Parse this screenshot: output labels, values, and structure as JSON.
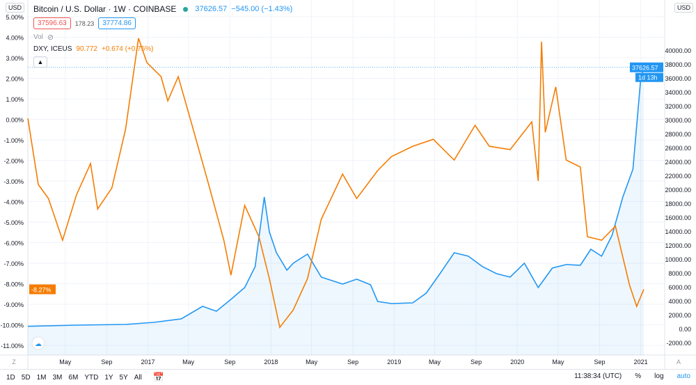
{
  "header": {
    "symbol_title": "Bitcoin / U.S. Dollar · 1W · COINBASE",
    "last": "37626.57",
    "change": "−545.00 (−1.43%)",
    "bid": "37596.63",
    "spread": "178.23",
    "ask": "37774.86",
    "vol_label": "Vol",
    "compare_label": "DXY, ICEUS",
    "compare_value": "90.772",
    "compare_change": "+0.674 (+0.75%)",
    "currency_left": "USD",
    "currency_right": "USD"
  },
  "price_label": "37626.57",
  "countdown": "1d 13h",
  "dxy_label": "-8.27%",
  "toolbar": {
    "ranges": [
      "1D",
      "5D",
      "1M",
      "3M",
      "6M",
      "YTD",
      "1Y",
      "5Y",
      "All"
    ],
    "time": "11:38:34 (UTC)",
    "percent": "%",
    "log": "log",
    "auto": "auto"
  },
  "colors": {
    "btc": "#2196f3",
    "dxy": "#f57c00",
    "grid": "#f0f3fa"
  },
  "chart_data": {
    "type": "line",
    "x_ticks": [
      "May",
      "Sep",
      "2017",
      "May",
      "Sep",
      "2018",
      "May",
      "Sep",
      "2019",
      "May",
      "Sep",
      "2020",
      "May",
      "Sep",
      "2021"
    ],
    "x_tick_dates": [
      "2016-05-01",
      "2016-09-01",
      "2017-01-01",
      "2017-05-01",
      "2017-09-01",
      "2018-01-01",
      "2018-05-01",
      "2018-09-01",
      "2019-01-01",
      "2019-05-01",
      "2019-09-01",
      "2020-01-01",
      "2020-05-01",
      "2020-09-01",
      "2021-01-01"
    ],
    "x_range": [
      "2016-01-11",
      "2021-03-13"
    ],
    "left_axis": {
      "ticks": [
        "5.00%",
        "4.00%",
        "3.00%",
        "2.00%",
        "1.00%",
        "0.00%",
        "-1.00%",
        "-2.00%",
        "-3.00%",
        "-4.00%",
        "-5.00%",
        "-6.00%",
        "-7.00%",
        "-8.00%",
        "-9.00%",
        "-10.00%",
        "-11.00%"
      ],
      "range": [
        -11.47,
        5.81
      ]
    },
    "right_axis": {
      "ticks": [
        "40000.00",
        "38000.00",
        "36000.00",
        "34000.00",
        "32000.00",
        "30000.00",
        "28000.00",
        "26000.00",
        "24000.00",
        "22000.00",
        "20000.00",
        "18000.00",
        "16000.00",
        "14000.00",
        "12000.00",
        "10000.00",
        "8000.00",
        "6000.00",
        "4000.00",
        "2000.00",
        "0.00",
        "-2000.00"
      ],
      "range": [
        -3700,
        47300
      ]
    },
    "grid": true,
    "series": [
      {
        "name": "Bitcoin / U.S. Dollar",
        "axis": "right",
        "style": "area",
        "points": [
          [
            "2016-01-11",
            430
          ],
          [
            "2016-06-03",
            600
          ],
          [
            "2016-10-27",
            700
          ],
          [
            "2017-01-19",
            1000
          ],
          [
            "2017-04-10",
            1500
          ],
          [
            "2017-06-12",
            3300
          ],
          [
            "2017-07-23",
            2600
          ],
          [
            "2017-09-04",
            4300
          ],
          [
            "2017-10-15",
            6000
          ],
          [
            "2017-11-15",
            9000
          ],
          [
            "2017-12-12",
            19000
          ],
          [
            "2017-12-27",
            14000
          ],
          [
            "2018-01-17",
            11000
          ],
          [
            "2018-02-17",
            8500
          ],
          [
            "2018-03-08",
            9500
          ],
          [
            "2018-04-19",
            10800
          ],
          [
            "2018-05-30",
            7500
          ],
          [
            "2018-08-01",
            6500
          ],
          [
            "2018-09-12",
            7200
          ],
          [
            "2018-10-23",
            6400
          ],
          [
            "2018-11-13",
            4000
          ],
          [
            "2018-12-24",
            3700
          ],
          [
            "2019-02-25",
            3800
          ],
          [
            "2019-04-06",
            5200
          ],
          [
            "2019-05-17",
            8000
          ],
          [
            "2019-06-28",
            11000
          ],
          [
            "2019-08-09",
            10500
          ],
          [
            "2019-09-20",
            9000
          ],
          [
            "2019-10-31",
            8000
          ],
          [
            "2019-12-11",
            7500
          ],
          [
            "2020-01-22",
            9500
          ],
          [
            "2020-03-03",
            6000
          ],
          [
            "2020-04-14",
            8800
          ],
          [
            "2020-05-25",
            9300
          ],
          [
            "2020-07-06",
            9200
          ],
          [
            "2020-08-06",
            11500
          ],
          [
            "2020-09-07",
            10500
          ],
          [
            "2020-10-08",
            13500
          ],
          [
            "2020-11-09",
            19000
          ],
          [
            "2020-12-09",
            23000
          ],
          [
            "2021-01-01",
            36000
          ],
          [
            "2021-01-10",
            37626.57
          ]
        ]
      },
      {
        "name": "DXY, ICEUS",
        "axis": "left",
        "style": "line",
        "points": [
          [
            "2016-01-11",
            0.05
          ],
          [
            "2016-02-11",
            -3.17
          ],
          [
            "2016-03-12",
            -3.85
          ],
          [
            "2016-04-23",
            -5.88
          ],
          [
            "2016-06-03",
            -3.68
          ],
          [
            "2016-07-15",
            -2.15
          ],
          [
            "2016-08-05",
            -4.36
          ],
          [
            "2016-09-16",
            -3.34
          ],
          [
            "2016-10-27",
            -0.46
          ],
          [
            "2016-12-04",
            3.95
          ],
          [
            "2016-12-29",
            2.76
          ],
          [
            "2017-02-09",
            2.08
          ],
          [
            "2017-03-01",
            0.9
          ],
          [
            "2017-04-01",
            2.08
          ],
          [
            "2017-05-12",
            -0.29
          ],
          [
            "2017-07-03",
            -3.34
          ],
          [
            "2017-08-14",
            -5.88
          ],
          [
            "2017-09-04",
            -7.58
          ],
          [
            "2017-10-15",
            -4.19
          ],
          [
            "2017-11-26",
            -5.71
          ],
          [
            "2017-12-27",
            -7.75
          ],
          [
            "2018-01-27",
            -10.12
          ],
          [
            "2018-03-08",
            -9.27
          ],
          [
            "2018-04-19",
            -7.75
          ],
          [
            "2018-05-30",
            -4.86
          ],
          [
            "2018-08-01",
            -2.66
          ],
          [
            "2018-09-12",
            -3.85
          ],
          [
            "2018-11-13",
            -2.49
          ],
          [
            "2018-12-24",
            -1.81
          ],
          [
            "2019-02-25",
            -1.31
          ],
          [
            "2019-04-27",
            -0.97
          ],
          [
            "2019-06-28",
            -1.98
          ],
          [
            "2019-08-29",
            -0.29
          ],
          [
            "2019-10-10",
            -1.31
          ],
          [
            "2019-12-11",
            -1.47
          ],
          [
            "2020-02-13",
            -0.12
          ],
          [
            "2020-03-03",
            -3.0
          ],
          [
            "2020-03-13",
            3.78
          ],
          [
            "2020-03-24",
            -0.63
          ],
          [
            "2020-04-24",
            1.58
          ],
          [
            "2020-05-25",
            -1.98
          ],
          [
            "2020-07-06",
            -2.32
          ],
          [
            "2020-07-27",
            -5.71
          ],
          [
            "2020-09-07",
            -5.88
          ],
          [
            "2020-10-18",
            -5.2
          ],
          [
            "2020-11-29",
            -8.08
          ],
          [
            "2020-12-20",
            -9.1
          ],
          [
            "2021-01-10",
            -8.27
          ]
        ]
      }
    ]
  }
}
